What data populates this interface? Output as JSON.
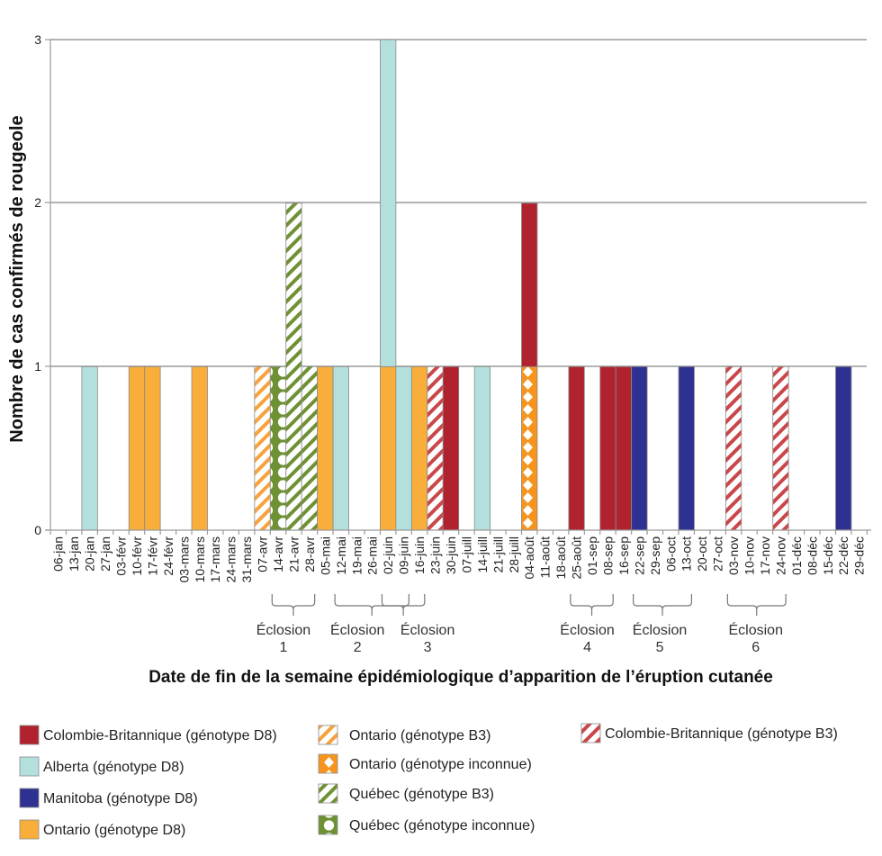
{
  "chart_data": {
    "type": "bar",
    "stacked": true,
    "title": "",
    "xlabel": "Date de fin de la semaine épidémiologique d’apparition de l’éruption cutanée",
    "ylabel": "Nombre de cas confirmés de rougeole",
    "ylim": [
      0,
      3
    ],
    "yticks": [
      "0",
      "1",
      "2",
      "3"
    ],
    "grid": true,
    "legend_position": "bottom",
    "categories": [
      "06-jan",
      "13-jan",
      "20-jan",
      "27-jan",
      "03-févr",
      "10-févr",
      "17-févr",
      "24-févr",
      "03-mars",
      "10-mars",
      "17-mars",
      "24-mars",
      "31-mars",
      "07-avr",
      "14-avr",
      "21-avr",
      "28-avr",
      "05-mai",
      "12-mai",
      "19-mai",
      "26-mai",
      "02-juin",
      "09-juin",
      "16-juin",
      "23-juin",
      "30-juin",
      "07-juill",
      "14-juill",
      "21-juill",
      "28-juill",
      "04-août",
      "11-août",
      "18-août",
      "25-août",
      "01-sep",
      "08-sep",
      "16-sep",
      "22-sep",
      "29-sep",
      "06-oct",
      "13-oct",
      "20-oct",
      "27-oct",
      "03-nov",
      "10-nov",
      "17-nov",
      "24-nov",
      "01-déc",
      "08-déc",
      "15-déc",
      "22-déc",
      "29-déc"
    ],
    "series": [
      {
        "key": "cb_d8",
        "name": "Colombie-Britannique (génotype D8)",
        "color": "#B0232E",
        "fill": "solid",
        "values": {
          "30-juin": 1,
          "04-août": 1,
          "25-août": 1,
          "08-sep": 1,
          "16-sep": 1
        }
      },
      {
        "key": "ab_d8",
        "name": "Alberta (génotype D8)",
        "color": "#B3E0DC",
        "fill": "solid",
        "values": {
          "20-jan": 1,
          "12-mai": 1,
          "02-juin": 2,
          "09-juin": 1,
          "14-juill": 1
        }
      },
      {
        "key": "mb_d8",
        "name": "Manitoba (génotype D8)",
        "color": "#2E3192",
        "fill": "solid",
        "values": {
          "22-sep": 1,
          "13-oct": 1,
          "22-déc": 1
        }
      },
      {
        "key": "on_d8",
        "name": "Ontario (génotype D8)",
        "color": "#F9AE3B",
        "fill": "solid",
        "values": {
          "10-févr": 1,
          "17-févr": 1,
          "10-mars": 1,
          "05-mai": 1,
          "02-juin": 1,
          "16-juin": 1
        }
      },
      {
        "key": "on_b3",
        "name": "Ontario (génotype B3)",
        "color": "#F7A23C",
        "fill": "stripes",
        "values": {
          "07-avr": 1
        }
      },
      {
        "key": "on_inc",
        "name": "Ontario (génotype inconnue)",
        "color": "#F7941D",
        "fill": "diamonds",
        "values": {
          "04-août": 1
        }
      },
      {
        "key": "qc_b3",
        "name": "Québec (génotype B3)",
        "color": "#6E9134",
        "fill": "stripes",
        "values": {
          "21-avr": 2,
          "28-avr": 1
        }
      },
      {
        "key": "qc_inc",
        "name": "Québec (génotype inconnue)",
        "color": "#6E9134",
        "fill": "circles",
        "values": {
          "14-avr": 1
        }
      },
      {
        "key": "cb_b3",
        "name": "Colombie-Britannique (génotype B3)",
        "color": "#C9474B",
        "fill": "stripes",
        "values": {
          "23-juin": 1,
          "03-nov": 1,
          "24-nov": 1
        }
      }
    ],
    "annotations": [
      {
        "label": "Éclosion",
        "number": "1",
        "start": "14-avr",
        "end": "28-avr"
      },
      {
        "label": "Éclosion",
        "number": "2",
        "start": "12-mai",
        "end": "09-juin"
      },
      {
        "label": "Éclosion",
        "number": "3",
        "start": "02-juin",
        "end": "16-juin"
      },
      {
        "label": "Éclosion",
        "number": "4",
        "start": "25-août",
        "end": "08-sep"
      },
      {
        "label": "Éclosion",
        "number": "5",
        "start": "22-sep",
        "end": "13-oct"
      },
      {
        "label": "Éclosion",
        "number": "6",
        "start": "03-nov",
        "end": "24-nov"
      }
    ]
  }
}
